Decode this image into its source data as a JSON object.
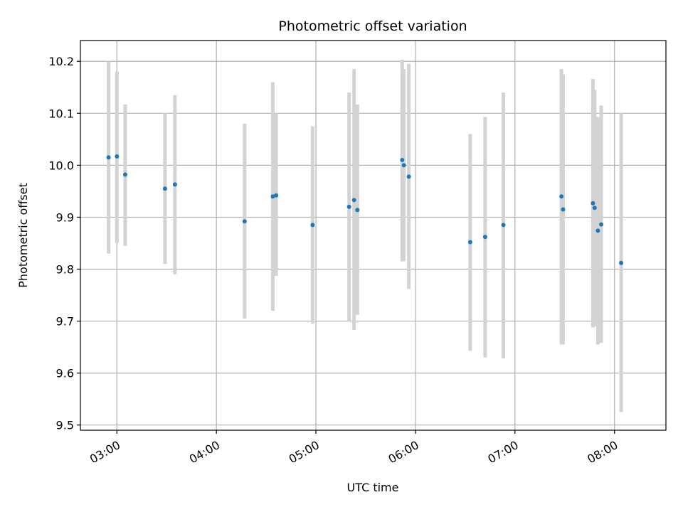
{
  "chart_data": {
    "type": "scatter",
    "title": "Photometric offset variation",
    "xlabel": "UTC time",
    "ylabel": "Photometric offset",
    "x_unit": "hours UTC",
    "xlim": [
      "02:38",
      "08:31"
    ],
    "ylim": [
      9.49,
      10.24
    ],
    "x_ticks": [
      "03:00",
      "04:00",
      "05:00",
      "06:00",
      "07:00",
      "08:00"
    ],
    "y_ticks": [
      "9.5",
      "9.6",
      "9.7",
      "9.8",
      "9.9",
      "10.0",
      "10.1",
      "10.2"
    ],
    "grid": true,
    "legend": "none",
    "colors": {
      "point": "#1f77b4",
      "errorbar": "#d3d3d3",
      "grid": "#b0b0b0"
    },
    "points": [
      {
        "x": "02:55",
        "y": 10.015,
        "ylo": 9.83,
        "yhi": 10.2
      },
      {
        "x": "03:00",
        "y": 10.017,
        "ylo": 9.85,
        "yhi": 10.18
      },
      {
        "x": "03:05",
        "y": 9.982,
        "ylo": 9.845,
        "yhi": 10.117
      },
      {
        "x": "03:29",
        "y": 9.955,
        "ylo": 9.81,
        "yhi": 10.1
      },
      {
        "x": "03:35",
        "y": 9.963,
        "ylo": 9.79,
        "yhi": 10.135
      },
      {
        "x": "04:17",
        "y": 9.892,
        "ylo": 9.705,
        "yhi": 10.08
      },
      {
        "x": "04:34",
        "y": 9.94,
        "ylo": 9.72,
        "yhi": 10.16
      },
      {
        "x": "04:36",
        "y": 9.942,
        "ylo": 9.787,
        "yhi": 10.1
      },
      {
        "x": "04:58",
        "y": 9.885,
        "ylo": 9.695,
        "yhi": 10.075
      },
      {
        "x": "05:20",
        "y": 9.92,
        "ylo": 9.7,
        "yhi": 10.14
      },
      {
        "x": "05:23",
        "y": 9.933,
        "ylo": 9.683,
        "yhi": 10.185
      },
      {
        "x": "05:25",
        "y": 9.914,
        "ylo": 9.712,
        "yhi": 10.117
      },
      {
        "x": "05:52",
        "y": 10.01,
        "ylo": 9.815,
        "yhi": 10.203
      },
      {
        "x": "05:53",
        "y": 10.0,
        "ylo": 9.815,
        "yhi": 10.185
      },
      {
        "x": "05:56",
        "y": 9.978,
        "ylo": 9.762,
        "yhi": 10.195
      },
      {
        "x": "06:33",
        "y": 9.852,
        "ylo": 9.643,
        "yhi": 10.06
      },
      {
        "x": "06:42",
        "y": 9.862,
        "ylo": 9.63,
        "yhi": 10.093
      },
      {
        "x": "06:53",
        "y": 9.885,
        "ylo": 9.628,
        "yhi": 10.14
      },
      {
        "x": "07:28",
        "y": 9.94,
        "ylo": 9.655,
        "yhi": 10.185
      },
      {
        "x": "07:29",
        "y": 9.915,
        "ylo": 9.655,
        "yhi": 10.175
      },
      {
        "x": "07:47",
        "y": 9.927,
        "ylo": 9.688,
        "yhi": 10.166
      },
      {
        "x": "07:48",
        "y": 9.918,
        "ylo": 9.69,
        "yhi": 10.145
      },
      {
        "x": "07:50",
        "y": 9.874,
        "ylo": 9.655,
        "yhi": 10.093
      },
      {
        "x": "07:52",
        "y": 9.886,
        "ylo": 9.658,
        "yhi": 10.115
      },
      {
        "x": "08:04",
        "y": 9.812,
        "ylo": 9.525,
        "yhi": 10.1
      }
    ]
  }
}
